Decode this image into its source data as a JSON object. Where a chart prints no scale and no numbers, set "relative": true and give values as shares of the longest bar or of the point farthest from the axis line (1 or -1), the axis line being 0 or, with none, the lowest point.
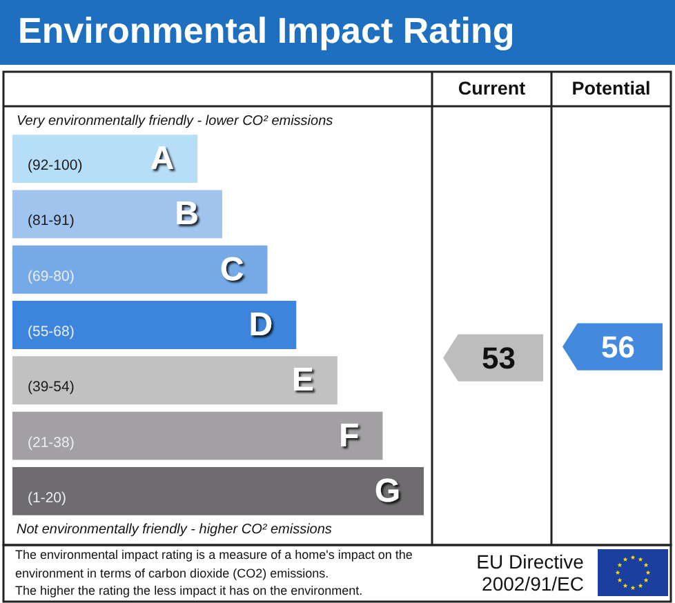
{
  "chart_data": [
    {
      "type": "bar",
      "orientation": "horizontal",
      "relative": true,
      "title": "Environmental Impact Rating",
      "categories": [
        "A",
        "B",
        "C",
        "D",
        "E",
        "F",
        "G"
      ],
      "values": [
        0.45,
        0.51,
        0.62,
        0.69,
        0.79,
        0.9,
        1
      ],
      "colors": [
        "#b6def6",
        "#a0c4ee",
        "#75aae6",
        "#3c84dc",
        "#c1c1c1",
        "#a3a0a4",
        "#6e6c6f"
      ],
      "annotations": [
        "Very environmentally friendly - lower CO² emissions",
        "Not environmentally friendly - higher CO² emissions",
        "The environmental impact rating is a measure of a home's impact on the environment in terms of carbon dioxide (CO2) emissions.",
        "The higher the rating the less impact it has on the environment.",
        "EU Directive 2002/91/EC",
        "(92-100)",
        "(81-91)",
        "(69-80)",
        "(55-68)",
        "(39-54)",
        "(21-38)",
        "(1-20)"
      ]
    },
    {
      "type": "other",
      "categories": [
        "Current",
        "Potential"
      ],
      "values": [
        53,
        56
      ],
      "colors": [
        "#bdbdbd",
        "#4389dd"
      ],
      "data_labels": true
    }
  ]
}
